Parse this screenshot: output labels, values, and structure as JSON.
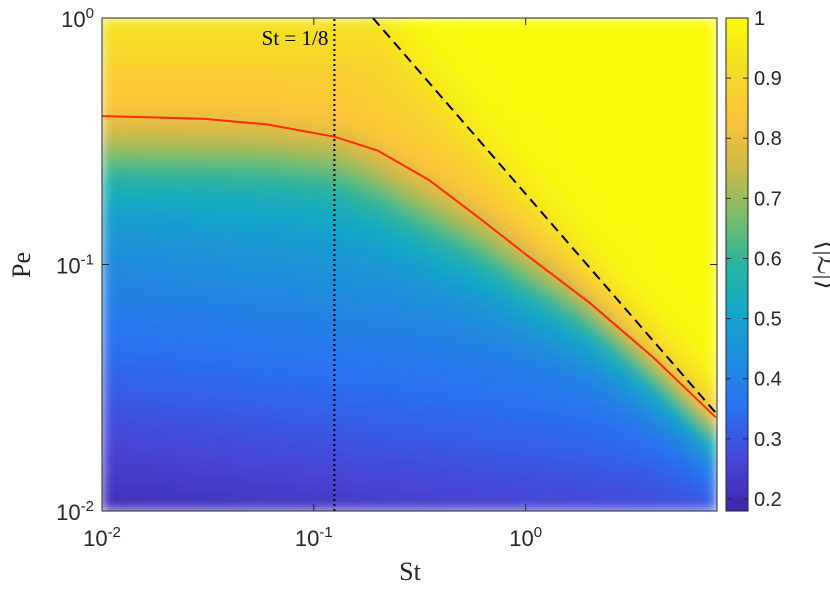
{
  "chart_data": {
    "type": "heatmap",
    "title": "",
    "xlabel": "St",
    "ylabel": "Pe",
    "xscale": "log",
    "yscale": "log",
    "xlim": [
      0.01,
      8
    ],
    "ylim": [
      0.01,
      1
    ],
    "x_ticks": [
      {
        "value": 0.01,
        "base": "10",
        "exp": "-2"
      },
      {
        "value": 0.1,
        "base": "10",
        "exp": "-1"
      },
      {
        "value": 1,
        "base": "10",
        "exp": "0"
      }
    ],
    "y_ticks": [
      {
        "value": 0.01,
        "base": "10",
        "exp": "-2"
      },
      {
        "value": 0.1,
        "base": "10",
        "exp": "-1"
      },
      {
        "value": 1,
        "base": "10",
        "exp": "0"
      }
    ],
    "colorbar": {
      "label": "⟨|ℒ|⟩",
      "min": 0.18,
      "max": 1.0,
      "ticks": [
        {
          "value": 0.2,
          "label": "0.2"
        },
        {
          "value": 0.3,
          "label": "0.3"
        },
        {
          "value": 0.4,
          "label": "0.4"
        },
        {
          "value": 0.5,
          "label": "0.5"
        },
        {
          "value": 0.6,
          "label": "0.6"
        },
        {
          "value": 0.7,
          "label": "0.7"
        },
        {
          "value": 0.8,
          "label": "0.8"
        },
        {
          "value": 0.9,
          "label": "0.9"
        },
        {
          "value": 1.0,
          "label": "1"
        }
      ],
      "colormap": [
        "#3e26a8",
        "#4745d4",
        "#2b6ff0",
        "#1f8bde",
        "#14a7c8",
        "#2ab5a0",
        "#7bbd68",
        "#d2b949",
        "#fcc43b",
        "#f4dd25",
        "#f9fb0e"
      ]
    },
    "annotations": [
      {
        "text": "St = 1/8",
        "x": 0.125,
        "y": 0.83
      }
    ],
    "lines": [
      {
        "style": "dotted",
        "color": "#000000",
        "x": [
          0.125,
          0.125
        ],
        "y": [
          0.01,
          1
        ]
      },
      {
        "style": "dashed",
        "color": "#000000",
        "x": [
          0.19,
          7.9
        ],
        "y": [
          1,
          0.025
        ]
      },
      {
        "style": "solid",
        "color": "#ff2a00",
        "x": [
          0.01,
          0.03,
          0.06,
          0.125,
          0.2,
          0.35,
          0.6,
          1,
          2,
          4,
          7.9
        ],
        "y": [
          0.4,
          0.39,
          0.37,
          0.33,
          0.29,
          0.22,
          0.155,
          0.11,
          0.07,
          0.042,
          0.024
        ]
      }
    ],
    "heat_profile": {
      "st": [
        0.01,
        0.03,
        0.06,
        0.125,
        0.2,
        0.35,
        0.6,
        1,
        2,
        4,
        7.9
      ],
      "pe_transition": [
        0.3,
        0.3,
        0.3,
        0.28,
        0.23,
        0.17,
        0.13,
        0.095,
        0.065,
        0.04,
        0.024
      ]
    }
  }
}
